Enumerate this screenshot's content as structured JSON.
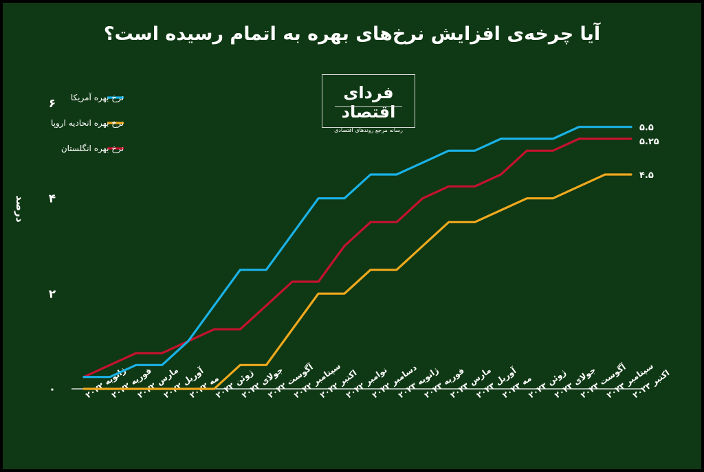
{
  "chart_data": {
    "type": "line",
    "title": "آیا چرخه‌ی افزایش نرخ‌های بهره به اتمام رسیده است؟",
    "ylabel": "درصد",
    "xlabel": "",
    "ylim": [
      0,
      6
    ],
    "yticks": [
      0,
      2,
      4,
      6
    ],
    "ytick_labels": [
      "۰",
      "۲",
      "۴",
      "۶"
    ],
    "grid": false,
    "legend_position": "top-left",
    "categories": [
      "ژانویه ۲۰۲۲",
      "فوریه ۲۰۲۲",
      "مارس ۲۰۲۲",
      "آوریل ۲۰۲۲",
      "مه ۲۰۲۲",
      "ژوئن ۲۰۲۲",
      "جولای ۲۰۲۲",
      "آگوست ۲۰۲۲",
      "سپتامبر ۲۰۲۲",
      "اکتبر ۲۰۲۲",
      "نوامبر ۲۰۲۲",
      "دسامبر ۲۰۲۲",
      "ژانویه ۲۰۲۳",
      "فوریه ۲۰۲۳",
      "مارس ۲۰۲۳",
      "آوریل ۲۰۲۳",
      "مه ۲۰۲۳",
      "ژوئن ۲۰۲۳",
      "جولای ۲۰۲۳",
      "آگوست ۲۰۲۳",
      "سپتامبر ۲۰۲۳",
      "اکتبر ۲۰۲۳"
    ],
    "series": [
      {
        "name": "نرخ بهره آمریکا",
        "color": "#1ab2e8",
        "end_label": "۵.۵",
        "values": [
          0.25,
          0.25,
          0.5,
          0.5,
          1.0,
          1.75,
          2.5,
          2.5,
          3.25,
          4.0,
          4.0,
          4.5,
          4.5,
          4.75,
          5.0,
          5.0,
          5.25,
          5.25,
          5.25,
          5.5,
          5.5,
          5.5
        ]
      },
      {
        "name": "نرخ بهره اتحادیه اروپا",
        "color": "#f0a91e",
        "end_label": "۴.۵",
        "values": [
          0,
          0,
          0,
          0,
          0,
          0,
          0.5,
          0.5,
          1.25,
          2.0,
          2.0,
          2.5,
          2.5,
          3.0,
          3.5,
          3.5,
          3.75,
          4.0,
          4.0,
          4.25,
          4.5,
          4.5
        ]
      },
      {
        "name": "نرخ بهره انگلستان",
        "color": "#c4122f",
        "end_label": "۵.۲۵",
        "values": [
          0.25,
          0.5,
          0.75,
          0.75,
          1.0,
          1.25,
          1.25,
          1.75,
          2.25,
          2.25,
          3.0,
          3.5,
          3.5,
          4.0,
          4.25,
          4.25,
          4.5,
          5.0,
          5.0,
          5.25,
          5.25,
          5.25
        ]
      }
    ]
  },
  "logo": {
    "name": "فردای اقتصاد",
    "tagline": "رسانه مرجع روندهای اقتصادی"
  }
}
